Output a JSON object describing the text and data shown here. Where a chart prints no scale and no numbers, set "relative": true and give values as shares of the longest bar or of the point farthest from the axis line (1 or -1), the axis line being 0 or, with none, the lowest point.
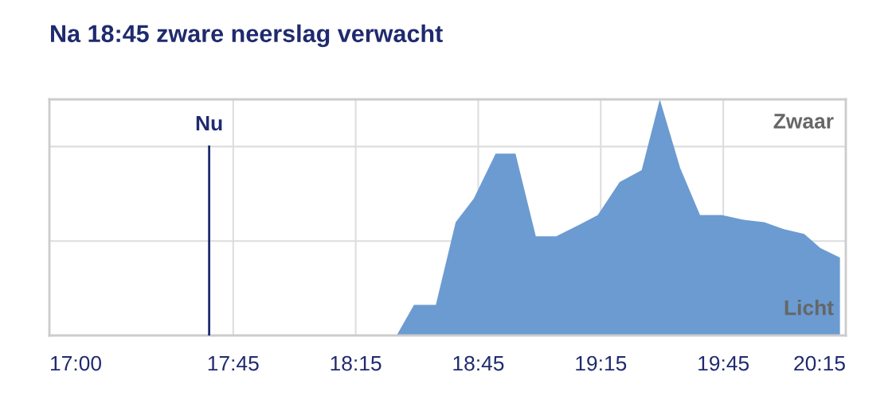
{
  "chart_data": {
    "type": "area",
    "title": "Na 18:45 zware neerslag verwacht",
    "relative": true,
    "x": [
      18.417,
      18.488,
      18.577,
      18.658,
      18.732,
      18.821,
      18.902,
      18.985,
      19.068,
      19.164,
      19.238,
      19.327,
      19.417,
      19.491,
      19.574,
      19.655,
      19.744,
      19.833,
      19.917,
      19.997,
      20.08,
      20.146,
      20.226
    ],
    "series": [
      {
        "color": "#6b9bd1",
        "values": [
          0,
          0.13,
          0.13,
          0.48,
          0.58,
          0.77,
          0.77,
          0.42,
          0.42,
          0.47,
          0.51,
          0.65,
          0.7,
          1.0,
          0.71,
          0.51,
          0.51,
          0.49,
          0.48,
          0.45,
          0.43,
          0.37,
          0.33
        ]
      }
    ],
    "xlim": [
      17.0,
      20.25
    ],
    "xticks": [
      {
        "value": 17.0,
        "label": "17:00"
      },
      {
        "value": 17.75,
        "label": "17:45"
      },
      {
        "value": 18.25,
        "label": "18:15"
      },
      {
        "value": 18.75,
        "label": "18:45"
      },
      {
        "value": 19.25,
        "label": "19:15"
      },
      {
        "value": 19.75,
        "label": "19:45"
      },
      {
        "value": 20.25,
        "label": "20:15"
      }
    ],
    "ref_lines": [
      {
        "axis": "x",
        "value": 17.652,
        "label": "Nu",
        "color": "#1f2a6e"
      }
    ],
    "annotations": [
      "Zwaar",
      "Licht"
    ],
    "grid": true,
    "legend": false
  }
}
